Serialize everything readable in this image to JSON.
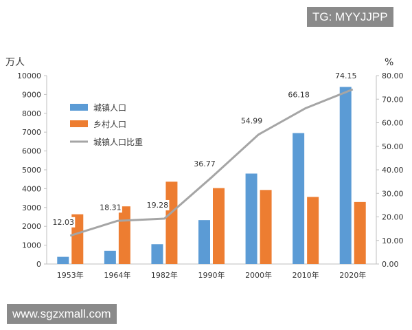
{
  "watermarks": {
    "top_right": "TG: MYYJJPP",
    "bottom_left": "www.sgzxmall.com"
  },
  "colors": {
    "urban": "#5b9bd5",
    "rural": "#ed7d31",
    "ratio": "#a5a5a5",
    "axis": "#bfbfbf",
    "text": "#333333"
  },
  "chart_data": {
    "type": "bar",
    "title": "",
    "categories": [
      "1953年",
      "1964年",
      "1982年",
      "1990年",
      "2000年",
      "2010年",
      "2020年"
    ],
    "left_axis": {
      "unit_label": "万人",
      "ylim": [
        0,
        10000
      ],
      "ticks": [
        "0",
        "1000",
        "2000",
        "3000",
        "4000",
        "5000",
        "6000",
        "7000",
        "8000",
        "9000",
        "10000"
      ]
    },
    "right_axis": {
      "unit_label": "%",
      "ylim": [
        0,
        80
      ],
      "ticks": [
        "0.00",
        "10.00",
        "20.00",
        "30.00",
        "40.00",
        "50.00",
        "60.00",
        "70.00",
        "80.00"
      ]
    },
    "series": [
      {
        "name": "城镇人口",
        "type": "bar",
        "axis": "left",
        "color": "#5b9bd5",
        "values": [
          380,
          700,
          1050,
          2330,
          4800,
          6950,
          9400
        ]
      },
      {
        "name": "乡村人口",
        "type": "bar",
        "axis": "left",
        "color": "#ed7d31",
        "values": [
          2640,
          3060,
          4370,
          4030,
          3930,
          3560,
          3290
        ]
      },
      {
        "name": "城镇人口比重",
        "type": "line",
        "axis": "right",
        "color": "#a5a5a5",
        "values": [
          12.03,
          18.31,
          19.28,
          36.77,
          54.99,
          66.18,
          74.15
        ],
        "labels": [
          "12.03",
          "18.31",
          "19.28",
          "36.77",
          "54.99",
          "66.18",
          "74.15"
        ]
      }
    ],
    "legend": {
      "position": "top-left",
      "items": [
        "城镇人口",
        "乡村人口",
        "城镇人口比重"
      ]
    },
    "grid": false
  }
}
